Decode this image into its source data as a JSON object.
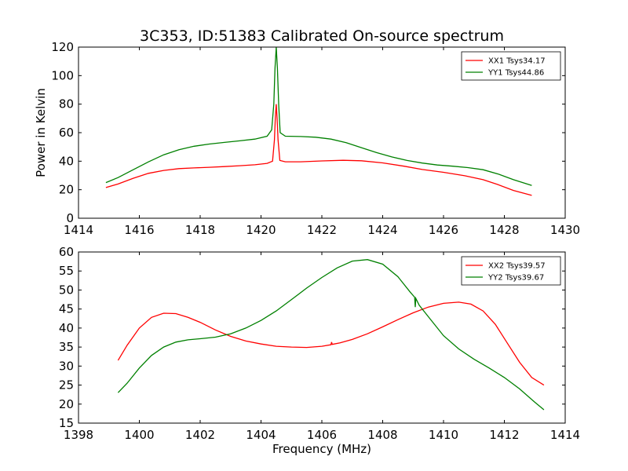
{
  "figure": {
    "title": "3C353, ID:51383 Calibrated On-source spectrum"
  },
  "chart_data": [
    {
      "type": "line",
      "title": "3C353, ID:51383 Calibrated On-source spectrum",
      "xlabel": "",
      "ylabel": "Power in Kelvin",
      "xlim": [
        1414,
        1430
      ],
      "ylim": [
        0,
        120
      ],
      "xticks": [
        1414,
        1416,
        1418,
        1420,
        1422,
        1424,
        1426,
        1428,
        1430
      ],
      "yticks": [
        0,
        20,
        40,
        60,
        80,
        100,
        120
      ],
      "grid": false,
      "legend_position": "top-right",
      "series": [
        {
          "name": "XX1 Tsys34.17",
          "color": "#ff0000",
          "points": [
            [
              1414.9,
              21.5
            ],
            [
              1415.3,
              24
            ],
            [
              1415.8,
              28
            ],
            [
              1416.3,
              31.5
            ],
            [
              1416.8,
              33.5
            ],
            [
              1417.3,
              34.8
            ],
            [
              1417.8,
              35.3
            ],
            [
              1418.3,
              35.7
            ],
            [
              1418.8,
              36.2
            ],
            [
              1419.3,
              36.8
            ],
            [
              1419.8,
              37.5
            ],
            [
              1420.2,
              38.5
            ],
            [
              1420.38,
              40
            ],
            [
              1420.44,
              55
            ],
            [
              1420.47,
              70
            ],
            [
              1420.5,
              80
            ],
            [
              1420.53,
              70
            ],
            [
              1420.56,
              55
            ],
            [
              1420.62,
              40.5
            ],
            [
              1420.8,
              39.6
            ],
            [
              1421.3,
              39.6
            ],
            [
              1422.0,
              40.2
            ],
            [
              1422.7,
              40.6
            ],
            [
              1423.3,
              40.3
            ],
            [
              1424.0,
              38.8
            ],
            [
              1424.7,
              36.5
            ],
            [
              1425.3,
              34.2
            ],
            [
              1426.0,
              32.2
            ],
            [
              1426.7,
              29.8
            ],
            [
              1427.3,
              27
            ],
            [
              1427.8,
              23.5
            ],
            [
              1428.3,
              19.5
            ],
            [
              1428.9,
              16
            ]
          ]
        },
        {
          "name": "YY1 Tsys44.86",
          "color": "#008000",
          "points": [
            [
              1414.9,
              25
            ],
            [
              1415.3,
              28.5
            ],
            [
              1415.8,
              34
            ],
            [
              1416.3,
              39.5
            ],
            [
              1416.8,
              44.5
            ],
            [
              1417.3,
              48
            ],
            [
              1417.8,
              50.5
            ],
            [
              1418.3,
              52
            ],
            [
              1418.8,
              53.2
            ],
            [
              1419.3,
              54.3
            ],
            [
              1419.8,
              55.5
            ],
            [
              1420.2,
              57.5
            ],
            [
              1420.35,
              62
            ],
            [
              1420.42,
              80
            ],
            [
              1420.46,
              105
            ],
            [
              1420.5,
              120
            ],
            [
              1420.54,
              105
            ],
            [
              1420.58,
              80
            ],
            [
              1420.63,
              60
            ],
            [
              1420.8,
              57.5
            ],
            [
              1421.3,
              57.3
            ],
            [
              1421.8,
              56.8
            ],
            [
              1422.3,
              55.5
            ],
            [
              1422.8,
              53
            ],
            [
              1423.3,
              49.5
            ],
            [
              1423.8,
              46
            ],
            [
              1424.3,
              43
            ],
            [
              1424.8,
              40.5
            ],
            [
              1425.3,
              38.7
            ],
            [
              1425.8,
              37.3
            ],
            [
              1426.3,
              36.5
            ],
            [
              1426.8,
              35.5
            ],
            [
              1427.3,
              34
            ],
            [
              1427.8,
              31
            ],
            [
              1428.3,
              27
            ],
            [
              1428.9,
              23
            ]
          ]
        }
      ]
    },
    {
      "type": "line",
      "title": "",
      "xlabel": "Frequency (MHz)",
      "ylabel": "",
      "xlim": [
        1398,
        1414
      ],
      "ylim": [
        15,
        60
      ],
      "xticks": [
        1398,
        1400,
        1402,
        1404,
        1406,
        1408,
        1410,
        1412,
        1414
      ],
      "yticks": [
        15,
        20,
        25,
        30,
        35,
        40,
        45,
        50,
        55,
        60
      ],
      "grid": false,
      "legend_position": "top-right",
      "series": [
        {
          "name": "XX2 Tsys39.57",
          "color": "#ff0000",
          "points": [
            [
              1399.3,
              31.5
            ],
            [
              1399.6,
              35.5
            ],
            [
              1400.0,
              40
            ],
            [
              1400.4,
              42.8
            ],
            [
              1400.8,
              43.9
            ],
            [
              1401.2,
              43.8
            ],
            [
              1401.6,
              42.8
            ],
            [
              1402.0,
              41.5
            ],
            [
              1402.5,
              39.5
            ],
            [
              1403.0,
              37.8
            ],
            [
              1403.5,
              36.6
            ],
            [
              1404.0,
              35.8
            ],
            [
              1404.5,
              35.2
            ],
            [
              1405.0,
              35
            ],
            [
              1405.5,
              34.9
            ],
            [
              1406.0,
              35.2
            ],
            [
              1406.3,
              35.6
            ],
            [
              1406.32,
              36.3
            ],
            [
              1406.34,
              35.7
            ],
            [
              1406.6,
              36.1
            ],
            [
              1407.0,
              37
            ],
            [
              1407.5,
              38.5
            ],
            [
              1408.0,
              40.3
            ],
            [
              1408.5,
              42.2
            ],
            [
              1409.0,
              44
            ],
            [
              1409.5,
              45.5
            ],
            [
              1410.0,
              46.5
            ],
            [
              1410.5,
              46.8
            ],
            [
              1410.9,
              46.3
            ],
            [
              1411.3,
              44.5
            ],
            [
              1411.7,
              41
            ],
            [
              1412.1,
              36
            ],
            [
              1412.5,
              31
            ],
            [
              1412.9,
              27
            ],
            [
              1413.3,
              25
            ]
          ]
        },
        {
          "name": "YY2 Tsys39.67",
          "color": "#008000",
          "points": [
            [
              1399.3,
              23
            ],
            [
              1399.6,
              25.5
            ],
            [
              1400.0,
              29.5
            ],
            [
              1400.4,
              32.8
            ],
            [
              1400.8,
              35
            ],
            [
              1401.2,
              36.3
            ],
            [
              1401.6,
              36.9
            ],
            [
              1402.0,
              37.2
            ],
            [
              1402.5,
              37.6
            ],
            [
              1403.0,
              38.5
            ],
            [
              1403.5,
              40
            ],
            [
              1404.0,
              42
            ],
            [
              1404.5,
              44.5
            ],
            [
              1405.0,
              47.5
            ],
            [
              1405.5,
              50.5
            ],
            [
              1406.0,
              53.3
            ],
            [
              1406.5,
              55.8
            ],
            [
              1407.0,
              57.6
            ],
            [
              1407.5,
              58
            ],
            [
              1408.0,
              56.8
            ],
            [
              1408.5,
              53.5
            ],
            [
              1408.9,
              49.5
            ],
            [
              1409.05,
              48.1
            ],
            [
              1409.07,
              45.5
            ],
            [
              1409.09,
              47.8
            ],
            [
              1409.2,
              46
            ],
            [
              1409.5,
              43
            ],
            [
              1410.0,
              38
            ],
            [
              1410.5,
              34.5
            ],
            [
              1411.0,
              31.8
            ],
            [
              1411.5,
              29.5
            ],
            [
              1412.0,
              27
            ],
            [
              1412.5,
              24
            ],
            [
              1413.0,
              20.5
            ],
            [
              1413.3,
              18.5
            ]
          ]
        }
      ]
    }
  ]
}
